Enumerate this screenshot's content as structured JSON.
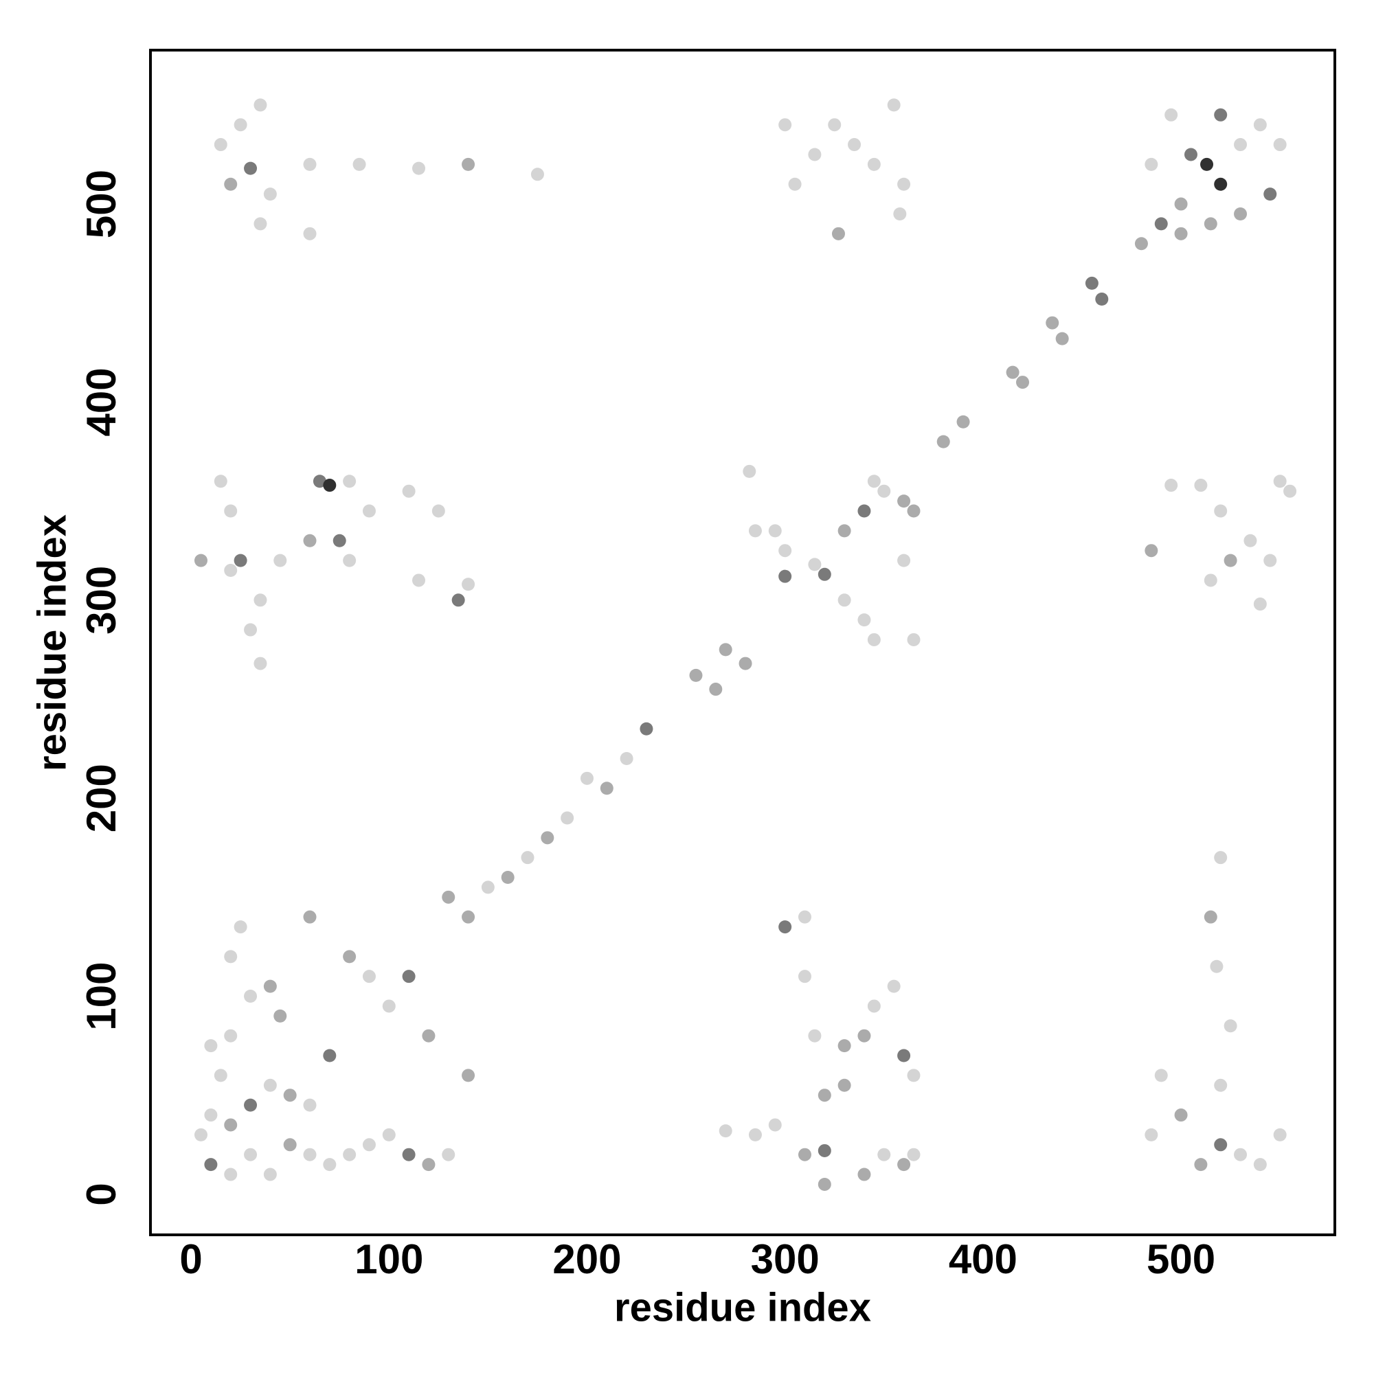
{
  "chart_data": {
    "type": "scatter",
    "xlabel": "residue index",
    "ylabel": "residue index",
    "xlim": [
      -20.5,
      577.7
    ],
    "ylim": [
      -20.5,
      577.7
    ],
    "xticks": [
      0,
      100,
      200,
      300,
      400,
      500
    ],
    "yticks": [
      0,
      100,
      200,
      300,
      400,
      500
    ],
    "grid": false,
    "x": [
      130,
      140,
      150,
      160,
      170,
      180,
      190,
      200,
      210,
      220,
      230,
      255,
      265,
      270,
      280,
      300,
      315,
      320,
      330,
      340,
      350,
      360,
      345,
      365,
      380,
      390,
      415,
      420,
      435,
      440,
      455,
      460,
      480,
      490,
      500,
      513,
      520,
      530,
      540,
      550,
      520,
      505,
      530,
      545,
      495,
      500,
      485,
      515,
      10,
      20,
      30,
      40,
      50,
      60,
      70,
      80,
      90,
      100,
      110,
      120,
      130,
      10,
      20,
      30,
      40,
      50,
      60,
      70,
      10,
      20,
      30,
      40,
      20,
      25,
      60,
      80,
      90,
      100,
      110,
      120,
      140,
      45,
      15,
      5,
      15,
      20,
      30,
      40,
      35,
      60,
      60,
      85,
      115,
      140,
      175,
      25,
      35,
      510,
      520,
      530,
      540,
      550,
      500,
      490,
      520,
      525,
      518,
      515,
      520,
      485,
      5,
      20,
      25,
      15,
      20,
      35,
      30,
      35,
      45,
      60,
      65,
      70,
      80,
      75,
      80,
      90,
      110,
      115,
      125,
      135,
      140,
      300,
      310,
      310,
      315,
      330,
      340,
      345,
      360,
      365,
      355,
      320,
      330,
      310,
      320,
      340,
      350,
      360,
      365,
      295,
      285,
      270,
      320,
      305,
      300,
      315,
      325,
      327,
      335,
      345,
      355,
      360,
      358,
      485,
      495,
      510,
      515,
      520,
      525,
      535,
      545,
      540,
      550,
      555,
      282,
      285,
      295,
      300,
      330,
      340,
      345,
      365,
      360
    ],
    "values": [
      150,
      140,
      155,
      160,
      170,
      180,
      190,
      210,
      205,
      220,
      235,
      262,
      255,
      275,
      268,
      312,
      318,
      313,
      335,
      345,
      355,
      350,
      360,
      345,
      380,
      390,
      415,
      410,
      440,
      432,
      460,
      452,
      480,
      490,
      500,
      520,
      510,
      530,
      540,
      530,
      545,
      525,
      495,
      505,
      545,
      485,
      520,
      490,
      15,
      10,
      20,
      10,
      25,
      20,
      15,
      20,
      25,
      30,
      20,
      15,
      20,
      40,
      35,
      45,
      55,
      50,
      45,
      70,
      75,
      80,
      100,
      105,
      120,
      135,
      140,
      120,
      110,
      95,
      110,
      80,
      60,
      90,
      60,
      30,
      530,
      510,
      518,
      505,
      490,
      485,
      520,
      520,
      518,
      520,
      515,
      540,
      550,
      15,
      25,
      20,
      15,
      30,
      40,
      60,
      55,
      85,
      115,
      140,
      170,
      30,
      320,
      315,
      320,
      360,
      345,
      300,
      285,
      268,
      320,
      330,
      360,
      358,
      360,
      330,
      320,
      345,
      355,
      310,
      345,
      300,
      308,
      135,
      140,
      110,
      80,
      75,
      80,
      95,
      70,
      60,
      105,
      50,
      55,
      20,
      22,
      10,
      20,
      15,
      20,
      35,
      30,
      32,
      5,
      510,
      540,
      525,
      540,
      485,
      530,
      520,
      550,
      510,
      495,
      325,
      358,
      358,
      310,
      345,
      320,
      330,
      320,
      298,
      360,
      355,
      365,
      335,
      335,
      325,
      300,
      290,
      280,
      280,
      320
    ],
    "colors": [
      "#ababab",
      "#ababab",
      "#d4d4d4",
      "#ababab",
      "#d4d4d4",
      "#ababab",
      "#d4d4d4",
      "#d4d4d4",
      "#ababab",
      "#d4d4d4",
      "#7a7a7a",
      "#ababab",
      "#ababab",
      "#ababab",
      "#ababab",
      "#7a7a7a",
      "#d4d4d4",
      "#7a7a7a",
      "#ababab",
      "#7a7a7a",
      "#d4d4d4",
      "#ababab",
      "#d4d4d4",
      "#ababab",
      "#ababab",
      "#ababab",
      "#ababab",
      "#ababab",
      "#ababab",
      "#ababab",
      "#7a7a7a",
      "#7a7a7a",
      "#ababab",
      "#7a7a7a",
      "#ababab",
      "#303030",
      "#303030",
      "#d4d4d4",
      "#d4d4d4",
      "#d4d4d4",
      "#7a7a7a",
      "#7a7a7a",
      "#ababab",
      "#7a7a7a",
      "#d4d4d4",
      "#ababab",
      "#d4d4d4",
      "#ababab",
      "#7a7a7a",
      "#d4d4d4",
      "#d4d4d4",
      "#d4d4d4",
      "#ababab",
      "#d4d4d4",
      "#d4d4d4",
      "#d4d4d4",
      "#d4d4d4",
      "#d4d4d4",
      "#7a7a7a",
      "#ababab",
      "#d4d4d4",
      "#d4d4d4",
      "#ababab",
      "#7a7a7a",
      "#d4d4d4",
      "#ababab",
      "#d4d4d4",
      "#7a7a7a",
      "#d4d4d4",
      "#d4d4d4",
      "#d4d4d4",
      "#ababab",
      "#d4d4d4",
      "#d4d4d4",
      "#ababab",
      "#ababab",
      "#d4d4d4",
      "#d4d4d4",
      "#7a7a7a",
      "#ababab",
      "#ababab",
      "#ababab",
      "#d4d4d4",
      "#d4d4d4",
      "#d4d4d4",
      "#ababab",
      "#7a7a7a",
      "#d4d4d4",
      "#d4d4d4",
      "#d4d4d4",
      "#d4d4d4",
      "#d4d4d4",
      "#d4d4d4",
      "#ababab",
      "#d4d4d4",
      "#d4d4d4",
      "#d4d4d4",
      "#ababab",
      "#7a7a7a",
      "#d4d4d4",
      "#d4d4d4",
      "#d4d4d4",
      "#ababab",
      "#d4d4d4",
      "#d4d4d4",
      "#d4d4d4",
      "#d4d4d4",
      "#ababab",
      "#d4d4d4",
      "#d4d4d4",
      "#ababab",
      "#d4d4d4",
      "#7a7a7a",
      "#d4d4d4",
      "#d4d4d4",
      "#d4d4d4",
      "#d4d4d4",
      "#d4d4d4",
      "#d4d4d4",
      "#ababab",
      "#7a7a7a",
      "#303030",
      "#d4d4d4",
      "#7a7a7a",
      "#d4d4d4",
      "#d4d4d4",
      "#d4d4d4",
      "#d4d4d4",
      "#d4d4d4",
      "#7a7a7a",
      "#d4d4d4",
      "#7a7a7a",
      "#d4d4d4",
      "#d4d4d4",
      "#d4d4d4",
      "#ababab",
      "#ababab",
      "#d4d4d4",
      "#7a7a7a",
      "#d4d4d4",
      "#d4d4d4",
      "#ababab",
      "#ababab",
      "#ababab",
      "#7a7a7a",
      "#ababab",
      "#d4d4d4",
      "#ababab",
      "#d4d4d4",
      "#d4d4d4",
      "#d4d4d4",
      "#d4d4d4",
      "#ababab",
      "#d4d4d4",
      "#d4d4d4",
      "#d4d4d4",
      "#d4d4d4",
      "#ababab",
      "#d4d4d4",
      "#d4d4d4",
      "#d4d4d4",
      "#d4d4d4",
      "#d4d4d4",
      "#ababab",
      "#d4d4d4",
      "#d4d4d4",
      "#d4d4d4",
      "#d4d4d4",
      "#ababab",
      "#d4d4d4",
      "#d4d4d4",
      "#d4d4d4",
      "#d4d4d4",
      "#d4d4d4",
      "#d4d4d4",
      "#d4d4d4",
      "#d4d4d4",
      "#d4d4d4",
      "#d4d4d4",
      "#d4d4d4",
      "#d4d4d4",
      "#d4d4d4",
      "#d4d4d4"
    ]
  }
}
